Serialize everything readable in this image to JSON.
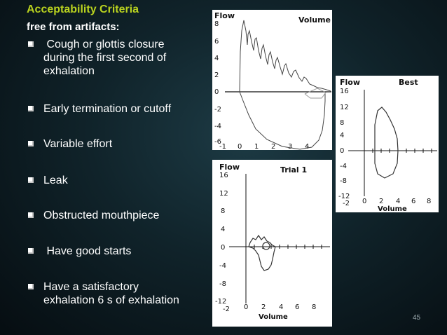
{
  "slide": {
    "title": "Acceptability Criteria",
    "subtitle": "free from artifacts:",
    "bullets": [
      " Cough or glottis closure\nduring the first second of\nexhalation",
      "Early termination or cutoff",
      "Variable effort",
      "Leak",
      "Obstructed mouthpiece",
      " Have good starts",
      "Have a satisfactory\nexhalation 6 s of exhalation"
    ],
    "page_number": "45"
  },
  "graph_top": {
    "ylabel": "Flow",
    "header": "Volume",
    "y_ticks": [
      "8",
      "6",
      "4",
      "2",
      "0",
      "-2",
      "-4",
      "-6"
    ],
    "x_ticks": [
      "-1",
      "0",
      "1",
      "2",
      "3",
      "4"
    ]
  },
  "graph_best": {
    "ylabel": "Flow",
    "title": "Best",
    "y_ticks": [
      "16",
      "12",
      "8",
      "4",
      "0",
      "-4",
      "-8",
      "-12"
    ],
    "x_ticks": [
      "-2",
      "0",
      "2",
      "4",
      "6",
      "8"
    ],
    "xlabel": "Volume"
  },
  "graph_trial": {
    "ylabel": "Flow",
    "title": "Trial 1",
    "y_ticks": [
      "16",
      "12",
      "8",
      "4",
      "0",
      "-4",
      "-8",
      "-12"
    ],
    "x_ticks": [
      "-2",
      "0",
      "2",
      "4",
      "6",
      "8"
    ],
    "xlabel": "Volume"
  }
}
